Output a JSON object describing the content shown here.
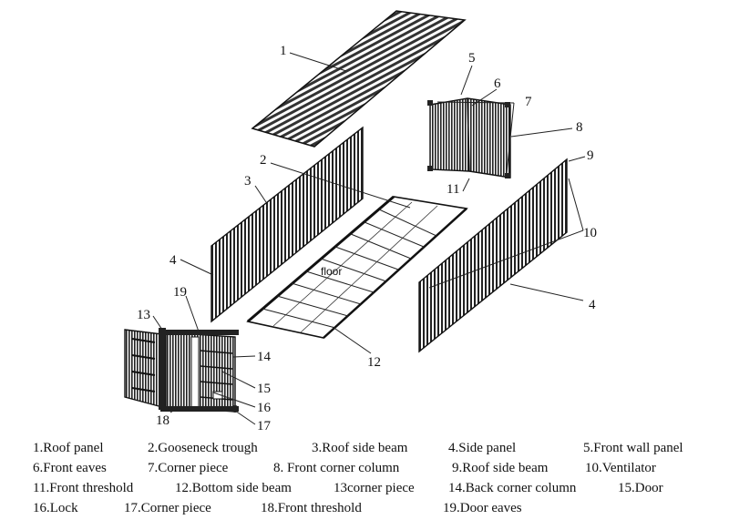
{
  "callouts": [
    "1",
    "2",
    "3",
    "4",
    "5",
    "6",
    "7",
    "8",
    "9",
    "10",
    "11",
    "12",
    "13",
    "14",
    "15",
    "16",
    "17",
    "18",
    "19",
    "4"
  ],
  "floor_label": "floor",
  "legend": [
    [
      "1.Roof panel",
      "2.Gooseneck trough",
      "3.Roof side beam",
      "4.Side panel",
      "5.Front wall panel"
    ],
    [
      "6.Front eaves",
      "7.Corner piece",
      "8. Front corner column",
      "9.Roof side beam",
      "10.Ventilator"
    ],
    [
      "11.Front threshold",
      "12.Bottom side beam",
      "13corner piece",
      "14.Back corner column",
      "15.Door"
    ],
    [
      "16.Lock",
      "17.Corner piece",
      "18.Front threshold",
      "19.Door eaves"
    ]
  ]
}
